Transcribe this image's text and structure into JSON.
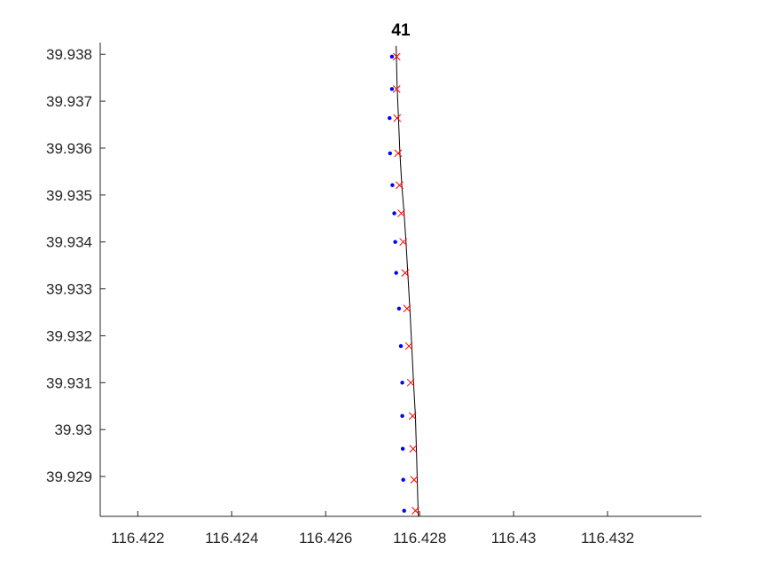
{
  "chart_data": {
    "type": "scatter",
    "title": "41",
    "xlabel": "",
    "ylabel": "",
    "xlim": [
      116.4212,
      116.434
    ],
    "ylim": [
      39.92815,
      39.93825
    ],
    "x_ticks": [
      116.422,
      116.424,
      116.426,
      116.428,
      116.43,
      116.432
    ],
    "x_tick_labels": [
      "116.422",
      "116.424",
      "116.426",
      "116.428",
      "116.43",
      "116.432"
    ],
    "y_ticks": [
      39.929,
      39.93,
      39.931,
      39.932,
      39.933,
      39.934,
      39.935,
      39.936,
      39.937,
      39.938
    ],
    "y_tick_labels": [
      "39.929",
      "39.93",
      "39.931",
      "39.932",
      "39.933",
      "39.934",
      "39.935",
      "39.936",
      "39.937",
      "39.938"
    ],
    "grid": false,
    "colors": {
      "line": "#000000",
      "dots": "#0000ff",
      "crosses": "#ff0000",
      "axis": "#262626"
    },
    "series": [
      {
        "mark": "line",
        "x": [
          116.4275,
          116.42752,
          116.42755,
          116.42758,
          116.42762,
          116.42767,
          116.42771,
          116.42775,
          116.42779,
          116.42783,
          116.42787,
          116.42791,
          116.42793,
          116.42797
        ],
        "y": [
          39.93818,
          39.9373,
          39.9366,
          39.9359,
          39.9352,
          39.9346,
          39.934,
          39.9333,
          39.9326,
          39.9318,
          39.931,
          39.9303,
          39.9296,
          39.92815
        ]
      },
      {
        "mark": "dot",
        "x": [
          116.42741,
          116.42741,
          116.42736,
          116.42737,
          116.42742,
          116.42746,
          116.42748,
          116.4275,
          116.42756,
          116.4276,
          116.42763,
          116.42763,
          116.42764,
          116.42765,
          116.42767
        ],
        "y": [
          39.93795,
          39.93726,
          39.93664,
          39.93589,
          39.93521,
          39.93461,
          39.934,
          39.93334,
          39.93258,
          39.93178,
          39.931,
          39.93029,
          39.92959,
          39.92893,
          39.92827
        ]
      },
      {
        "mark": "cross",
        "x": [
          116.42751,
          116.42751,
          116.42752,
          116.42754,
          116.42757,
          116.42761,
          116.42765,
          116.42769,
          116.42773,
          116.42777,
          116.42781,
          116.42785,
          116.42786,
          116.42788,
          116.42791
        ],
        "y": [
          39.93795,
          39.93726,
          39.93664,
          39.93589,
          39.93521,
          39.93461,
          39.934,
          39.93334,
          39.93258,
          39.93178,
          39.931,
          39.93029,
          39.92959,
          39.92893,
          39.92827
        ]
      }
    ]
  }
}
